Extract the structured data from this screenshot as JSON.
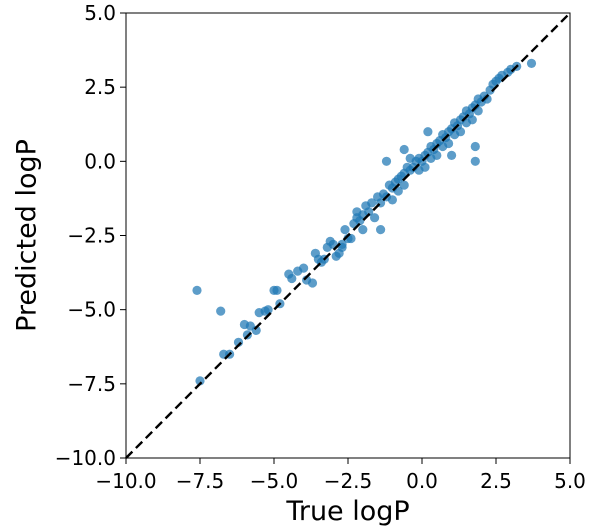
{
  "chart_data": {
    "type": "scatter",
    "title": "",
    "xlabel": "True logP",
    "ylabel": "Predicted logP",
    "xlim": [
      -10.0,
      5.0
    ],
    "ylim": [
      -10.0,
      5.0
    ],
    "x_ticks": [
      "−10.0",
      "−7.5",
      "−5.0",
      "−2.5",
      "0.0",
      "2.5",
      "5.0"
    ],
    "y_ticks": [
      "−10.0",
      "−7.5",
      "−5.0",
      "−2.5",
      "0.0",
      "2.5",
      "5.0"
    ],
    "x_tick_values": [
      -10.0,
      -7.5,
      -5.0,
      -2.5,
      0.0,
      2.5,
      5.0
    ],
    "y_tick_values": [
      -10.0,
      -7.5,
      -5.0,
      -2.5,
      0.0,
      2.5,
      5.0
    ],
    "grid": false,
    "reference_line": {
      "style": "dashed",
      "color": "#000000",
      "from": [
        -10.0,
        -10.0
      ],
      "to": [
        5.0,
        5.0
      ]
    },
    "marker_color": "#1f77b4",
    "points": [
      [
        -7.6,
        -4.35
      ],
      [
        -6.8,
        -5.05
      ],
      [
        -7.5,
        -7.4
      ],
      [
        -6.7,
        -6.5
      ],
      [
        -6.5,
        -6.5
      ],
      [
        -6.2,
        -6.1
      ],
      [
        -5.9,
        -5.85
      ],
      [
        -6.0,
        -5.5
      ],
      [
        -5.8,
        -5.55
      ],
      [
        -5.6,
        -5.7
      ],
      [
        -5.5,
        -5.1
      ],
      [
        -5.3,
        -5.05
      ],
      [
        -5.2,
        -5.0
      ],
      [
        -5.0,
        -4.35
      ],
      [
        -4.9,
        -4.35
      ],
      [
        -4.8,
        -4.8
      ],
      [
        -4.5,
        -3.8
      ],
      [
        -4.4,
        -3.95
      ],
      [
        -4.2,
        -3.7
      ],
      [
        -4.0,
        -3.6
      ],
      [
        -3.9,
        -4.0
      ],
      [
        -3.6,
        -3.1
      ],
      [
        -3.5,
        -3.3
      ],
      [
        -3.4,
        -3.4
      ],
      [
        -3.3,
        -3.3
      ],
      [
        -3.2,
        -2.9
      ],
      [
        -3.1,
        -2.7
      ],
      [
        -3.0,
        -2.8
      ],
      [
        -2.9,
        -3.2
      ],
      [
        -2.8,
        -3.1
      ],
      [
        -2.7,
        -2.8
      ],
      [
        -2.6,
        -2.3
      ],
      [
        -2.5,
        -2.6
      ],
      [
        -2.4,
        -2.6
      ],
      [
        -2.3,
        -2.1
      ],
      [
        -2.2,
        -1.9
      ],
      [
        -2.2,
        -1.7
      ],
      [
        -2.1,
        -2.0
      ],
      [
        -2.0,
        -1.8
      ],
      [
        -2.0,
        -2.3
      ],
      [
        -1.9,
        -1.5
      ],
      [
        -1.8,
        -1.7
      ],
      [
        -1.7,
        -1.4
      ],
      [
        -1.6,
        -1.9
      ],
      [
        -1.5,
        -1.2
      ],
      [
        -1.4,
        -1.4
      ],
      [
        -1.4,
        -2.3
      ],
      [
        -1.3,
        -1.1
      ],
      [
        -1.2,
        -1.2
      ],
      [
        -1.1,
        -0.8
      ],
      [
        -1.0,
        -0.9
      ],
      [
        -1.0,
        -1.3
      ],
      [
        -0.9,
        -0.7
      ],
      [
        -0.8,
        -0.6
      ],
      [
        -0.8,
        -1.0
      ],
      [
        -0.7,
        -0.5
      ],
      [
        -0.6,
        -0.4
      ],
      [
        -0.6,
        -0.8
      ],
      [
        -0.5,
        -0.2
      ],
      [
        -0.4,
        -0.3
      ],
      [
        -0.4,
        0.1
      ],
      [
        -0.3,
        -0.2
      ],
      [
        -0.2,
        0.0
      ],
      [
        -0.1,
        0.1
      ],
      [
        -0.1,
        -0.3
      ],
      [
        0.0,
        0.0
      ],
      [
        0.1,
        0.2
      ],
      [
        0.1,
        -0.2
      ],
      [
        0.2,
        0.3
      ],
      [
        0.3,
        0.1
      ],
      [
        0.3,
        0.5
      ],
      [
        0.4,
        0.4
      ],
      [
        0.5,
        0.6
      ],
      [
        0.5,
        0.2
      ],
      [
        0.6,
        0.7
      ],
      [
        0.7,
        0.5
      ],
      [
        0.7,
        0.9
      ],
      [
        0.8,
        0.8
      ],
      [
        0.9,
        1.0
      ],
      [
        0.9,
        0.6
      ],
      [
        1.0,
        1.1
      ],
      [
        1.1,
        0.9
      ],
      [
        1.1,
        1.3
      ],
      [
        1.2,
        1.2
      ],
      [
        1.3,
        1.4
      ],
      [
        1.3,
        1.0
      ],
      [
        1.4,
        1.5
      ],
      [
        1.5,
        1.3
      ],
      [
        1.5,
        1.7
      ],
      [
        1.6,
        1.6
      ],
      [
        1.7,
        1.8
      ],
      [
        1.7,
        1.4
      ],
      [
        1.8,
        1.9
      ],
      [
        1.9,
        1.7
      ],
      [
        1.9,
        2.1
      ],
      [
        2.0,
        2.0
      ],
      [
        2.1,
        2.2
      ],
      [
        2.2,
        2.1
      ],
      [
        2.3,
        2.4
      ],
      [
        2.4,
        2.6
      ],
      [
        2.5,
        2.7
      ],
      [
        2.6,
        2.8
      ],
      [
        2.7,
        2.9
      ],
      [
        2.9,
        3.0
      ],
      [
        3.0,
        3.1
      ],
      [
        3.2,
        3.2
      ],
      [
        3.7,
        3.3
      ],
      [
        1.8,
        0.0
      ],
      [
        1.8,
        0.5
      ],
      [
        -1.2,
        0.0
      ],
      [
        -0.6,
        0.4
      ],
      [
        0.2,
        1.0
      ],
      [
        1.0,
        0.2
      ],
      [
        -2.7,
        -2.9
      ],
      [
        -3.7,
        -4.1
      ]
    ]
  }
}
